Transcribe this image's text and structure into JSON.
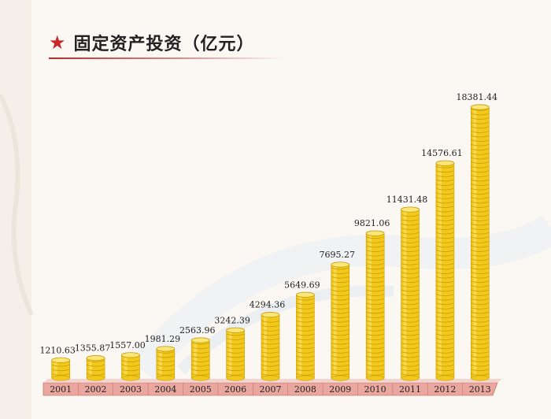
{
  "header": {
    "star": "★",
    "title": "固定资产投资（亿元）"
  },
  "colors": {
    "coin_fill": "#f2c81a",
    "coin_edge": "#c69a08",
    "coin_highlight": "#fbe67a",
    "axis_band": "#e9a79f",
    "axis_band_edge": "#c9766c",
    "accent": "#c8262a"
  },
  "chart_data": {
    "type": "bar",
    "categories": [
      "2001",
      "2002",
      "2003",
      "2004",
      "2005",
      "2006",
      "2007",
      "2008",
      "2009",
      "2010",
      "2011",
      "2012",
      "2013"
    ],
    "values": [
      1210.63,
      1355.87,
      1557.0,
      1981.29,
      2563.96,
      3242.39,
      4294.36,
      5649.69,
      7695.27,
      9821.06,
      11431.48,
      14576.61,
      18381.44
    ],
    "value_labels": [
      "1210.63",
      "1355.87",
      "1557.00",
      "1981.29",
      "2563.96",
      "3242.39",
      "4294.36",
      "5649.69",
      "7695.27",
      "9821.06",
      "11431.48",
      "14576.61",
      "18381.44"
    ],
    "title": "",
    "xlabel": "",
    "ylabel": "",
    "ylim": [
      0,
      18381.44
    ],
    "grid": false,
    "legend": "none"
  }
}
